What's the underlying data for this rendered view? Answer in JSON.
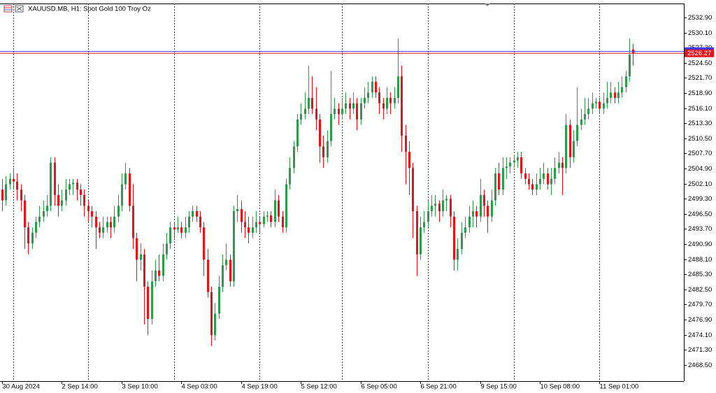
{
  "chart_data": {
    "type": "candlestick",
    "title": "XAUUSD.MB, H1:  Spot Gold 100 Troy Oz",
    "up_color": "#2e9b4a",
    "down_color": "#e0161b",
    "bid": 2526.27,
    "bid_label": "2526.27",
    "bid_color": "#e0161b",
    "ask": 2526.6,
    "ask_color": "#3a3aff",
    "ylim": [
      2465.5,
      2535.5
    ],
    "yticks": [
      {
        "value": 2532.9,
        "label": "2532.90"
      },
      {
        "value": 2530.1,
        "label": "2530.10"
      },
      {
        "value": 2527.3,
        "label": "2527.30"
      },
      {
        "value": 2524.5,
        "label": "2524.50"
      },
      {
        "value": 2521.7,
        "label": "2521.70"
      },
      {
        "value": 2518.9,
        "label": "2518.90"
      },
      {
        "value": 2516.1,
        "label": "2516.10"
      },
      {
        "value": 2513.3,
        "label": "2513.30"
      },
      {
        "value": 2510.5,
        "label": "2510.50"
      },
      {
        "value": 2507.7,
        "label": "2507.70"
      },
      {
        "value": 2504.9,
        "label": "2504.90"
      },
      {
        "value": 2502.1,
        "label": "2502.10"
      },
      {
        "value": 2499.3,
        "label": "2499.30"
      },
      {
        "value": 2496.5,
        "label": "2496.50"
      },
      {
        "value": 2493.7,
        "label": "2493.70"
      },
      {
        "value": 2490.9,
        "label": "2490.90"
      },
      {
        "value": 2488.1,
        "label": "2488.10"
      },
      {
        "value": 2485.3,
        "label": "2485.30"
      },
      {
        "value": 2482.5,
        "label": "2482.50"
      },
      {
        "value": 2479.7,
        "label": "2479.70"
      },
      {
        "value": 2476.9,
        "label": "2476.90"
      },
      {
        "value": 2474.1,
        "label": "2474.10"
      },
      {
        "value": 2471.3,
        "label": "2471.30"
      },
      {
        "value": 2468.5,
        "label": "2468.50"
      }
    ],
    "day_starts": [
      3,
      23,
      46,
      69,
      91,
      114,
      137,
      160
    ],
    "categories": [
      "30 Aug 2024",
      null,
      null,
      null,
      null,
      null,
      null,
      null,
      null,
      null,
      null,
      null,
      null,
      null,
      null,
      null,
      "2 Sep 14:00",
      null,
      null,
      null,
      null,
      null,
      null,
      null,
      null,
      null,
      null,
      null,
      null,
      null,
      null,
      null,
      "3 Sep 10:00",
      null,
      null,
      null,
      null,
      null,
      null,
      null,
      null,
      null,
      null,
      null,
      null,
      null,
      null,
      null,
      "4 Sep 03:00",
      null,
      null,
      null,
      null,
      null,
      null,
      null,
      null,
      null,
      null,
      null,
      null,
      null,
      null,
      null,
      "4 Sep 19:00",
      null,
      null,
      null,
      null,
      null,
      null,
      null,
      null,
      null,
      null,
      null,
      null,
      null,
      null,
      null,
      "5 Sep 12:00",
      null,
      null,
      null,
      null,
      null,
      null,
      null,
      null,
      null,
      null,
      null,
      null,
      null,
      null,
      null,
      "6 Sep 05:00",
      null,
      null,
      null,
      null,
      null,
      null,
      null,
      null,
      null,
      null,
      null,
      null,
      null,
      null,
      null,
      "6 Sep 21:00",
      null,
      null,
      null,
      null,
      null,
      null,
      null,
      null,
      null,
      null,
      null,
      null,
      null,
      null,
      null,
      "9 Sep 15:00",
      null,
      null,
      null,
      null,
      null,
      null,
      null,
      null,
      null,
      null,
      null,
      null,
      null,
      null,
      null,
      "10 Sep 08:00",
      null,
      null,
      null,
      null,
      null,
      null,
      null,
      null,
      null,
      null,
      null,
      null,
      null,
      null,
      null,
      "11 Sep 01:00",
      null,
      null,
      null,
      null,
      null,
      null,
      null,
      null,
      null
    ],
    "ohlc": [
      [
        2501,
        2503,
        2497,
        2499
      ],
      [
        2499,
        2503.5,
        2498,
        2502
      ],
      [
        2502,
        2504,
        2501,
        2503
      ],
      [
        2503,
        2505,
        2501,
        2502.5
      ],
      [
        2502.5,
        2504,
        2499,
        2501
      ],
      [
        2501,
        2502,
        2497,
        2499
      ],
      [
        2499,
        2500,
        2490,
        2494
      ],
      [
        2494,
        2495,
        2489,
        2491
      ],
      [
        2491,
        2494,
        2490,
        2493
      ],
      [
        2493,
        2496,
        2492,
        2495
      ],
      [
        2495,
        2498,
        2494,
        2496
      ],
      [
        2496,
        2499,
        2495,
        2497
      ],
      [
        2497,
        2500,
        2496,
        2498
      ],
      [
        2498,
        2507,
        2497,
        2506
      ],
      [
        2506,
        2507,
        2498,
        2500
      ],
      [
        2500,
        2502,
        2496,
        2498
      ],
      [
        2498,
        2501,
        2497,
        2499
      ],
      [
        2499,
        2503,
        2498,
        2501
      ],
      [
        2501,
        2503,
        2500,
        2502
      ],
      [
        2502,
        2503,
        2500,
        2502.3
      ],
      [
        2502.3,
        2503,
        2499,
        2501
      ],
      [
        2501,
        2502,
        2498,
        2500
      ],
      [
        2500,
        2501,
        2496,
        2498
      ],
      [
        2498,
        2499,
        2495,
        2497
      ],
      [
        2497,
        2498,
        2494,
        2496
      ],
      [
        2496,
        2497,
        2490,
        2494
      ],
      [
        2494,
        2495,
        2492,
        2493
      ],
      [
        2493,
        2496,
        2492,
        2494
      ],
      [
        2494,
        2496,
        2493,
        2495
      ],
      [
        2495,
        2496,
        2492,
        2494
      ],
      [
        2494,
        2498,
        2493,
        2496
      ],
      [
        2496,
        2500,
        2495,
        2498
      ],
      [
        2498,
        2504,
        2497,
        2502
      ],
      [
        2502,
        2506,
        2501,
        2504
      ],
      [
        2504,
        2505,
        2497,
        2498
      ],
      [
        2498,
        2502,
        2490,
        2492
      ],
      [
        2492,
        2493,
        2484,
        2488
      ],
      [
        2488,
        2491,
        2486,
        2489
      ],
      [
        2489,
        2490,
        2476,
        2483
      ],
      [
        2483,
        2484,
        2474,
        2477
      ],
      [
        2477,
        2486,
        2476,
        2484
      ],
      [
        2484,
        2488,
        2483,
        2486
      ],
      [
        2486,
        2489,
        2484,
        2485
      ],
      [
        2485,
        2491,
        2484,
        2489
      ],
      [
        2489,
        2493,
        2488,
        2491
      ],
      [
        2491,
        2495,
        2490,
        2494
      ],
      [
        2494,
        2495,
        2492,
        2493.6
      ],
      [
        2493.6,
        2496,
        2493,
        2494
      ],
      [
        2494,
        2495,
        2492,
        2493
      ],
      [
        2493,
        2496,
        2492,
        2494
      ],
      [
        2494,
        2497,
        2493,
        2496
      ],
      [
        2496,
        2498,
        2495,
        2497
      ],
      [
        2497,
        2498,
        2495,
        2496
      ],
      [
        2496,
        2497,
        2493,
        2494
      ],
      [
        2494,
        2495,
        2485,
        2488
      ],
      [
        2488,
        2490,
        2481,
        2482
      ],
      [
        2482,
        2483,
        2472,
        2474
      ],
      [
        2474,
        2480,
        2473,
        2478
      ],
      [
        2478,
        2485,
        2477,
        2483
      ],
      [
        2483,
        2489,
        2482,
        2487
      ],
      [
        2487,
        2491,
        2486,
        2488
      ],
      [
        2488,
        2489,
        2483,
        2484
      ],
      [
        2484,
        2498,
        2483,
        2497
      ],
      [
        2497,
        2500,
        2495,
        2497.4
      ],
      [
        2497.4,
        2499,
        2493,
        2495
      ],
      [
        2495,
        2497,
        2492,
        2494
      ],
      [
        2494,
        2496,
        2491,
        2493
      ],
      [
        2493,
        2496,
        2492,
        2494
      ],
      [
        2494,
        2497,
        2493,
        2495
      ],
      [
        2495,
        2496,
        2493,
        2494.6
      ],
      [
        2494.6,
        2497,
        2494,
        2496
      ],
      [
        2496,
        2497,
        2495,
        2496.2
      ],
      [
        2496.2,
        2497,
        2494,
        2495
      ],
      [
        2495,
        2501,
        2494,
        2499
      ],
      [
        2499,
        2500,
        2495,
        2496
      ],
      [
        2496,
        2497,
        2493,
        2494
      ],
      [
        2494,
        2503,
        2493,
        2502
      ],
      [
        2502,
        2507,
        2501,
        2505
      ],
      [
        2505,
        2510,
        2504,
        2509
      ],
      [
        2509,
        2515,
        2508,
        2514
      ],
      [
        2514,
        2517,
        2513,
        2515
      ],
      [
        2515,
        2519,
        2514,
        2516
      ],
      [
        2516,
        2524,
        2515,
        2518
      ],
      [
        2518,
        2522,
        2515,
        2516
      ],
      [
        2516,
        2520,
        2512,
        2514
      ],
      [
        2514,
        2515,
        2506,
        2509
      ],
      [
        2509,
        2511,
        2505,
        2507
      ],
      [
        2507,
        2512,
        2506,
        2510
      ],
      [
        2510,
        2523,
        2509,
        2515
      ],
      [
        2515,
        2518,
        2514,
        2516
      ],
      [
        2516,
        2517,
        2513,
        2515
      ],
      [
        2515,
        2518,
        2514,
        2516
      ],
      [
        2516,
        2519,
        2515,
        2517
      ],
      [
        2517,
        2518,
        2514,
        2516
      ],
      [
        2516,
        2519,
        2515,
        2517
      ],
      [
        2517,
        2518,
        2512,
        2514
      ],
      [
        2514,
        2518,
        2513,
        2517
      ],
      [
        2517,
        2520,
        2516,
        2518
      ],
      [
        2518,
        2521,
        2517,
        2519
      ],
      [
        2519,
        2522,
        2518,
        2521
      ],
      [
        2521,
        2522,
        2518,
        2519
      ],
      [
        2519,
        2520,
        2515,
        2517
      ],
      [
        2517,
        2518,
        2514,
        2516
      ],
      [
        2516,
        2520,
        2515,
        2518
      ],
      [
        2518,
        2519,
        2515,
        2517
      ],
      [
        2517,
        2520,
        2516,
        2518
      ],
      [
        2518,
        2529,
        2517,
        2522
      ],
      [
        2522,
        2524,
        2508,
        2511
      ],
      [
        2511,
        2513,
        2502,
        2508
      ],
      [
        2508,
        2510,
        2500,
        2505
      ],
      [
        2505,
        2506,
        2492,
        2497
      ],
      [
        2497,
        2498,
        2485,
        2489
      ],
      [
        2489,
        2496,
        2488,
        2494
      ],
      [
        2494,
        2497,
        2493,
        2495
      ],
      [
        2495,
        2499,
        2494,
        2497
      ],
      [
        2497,
        2500,
        2496,
        2498
      ],
      [
        2498,
        2500,
        2496,
        2498.4
      ],
      [
        2498.4,
        2499,
        2495,
        2497
      ],
      [
        2497,
        2501,
        2496,
        2499
      ],
      [
        2499,
        2500,
        2497,
        2499.3
      ],
      [
        2499.3,
        2500,
        2494,
        2496
      ],
      [
        2496,
        2497,
        2486,
        2488
      ],
      [
        2488,
        2492,
        2486,
        2490
      ],
      [
        2490,
        2495,
        2489,
        2493
      ],
      [
        2493,
        2496,
        2492,
        2494
      ],
      [
        2494,
        2498,
        2493,
        2496
      ],
      [
        2496,
        2499,
        2494,
        2497
      ],
      [
        2497,
        2498,
        2494,
        2496
      ],
      [
        2496,
        2503,
        2495,
        2500
      ],
      [
        2500,
        2501,
        2496,
        2498
      ],
      [
        2498,
        2499,
        2493,
        2496
      ],
      [
        2496,
        2501,
        2495,
        2499
      ],
      [
        2499,
        2505,
        2498,
        2504
      ],
      [
        2504,
        2506,
        2500,
        2501
      ],
      [
        2501,
        2507,
        2500,
        2505
      ],
      [
        2505,
        2507,
        2503,
        2505.3
      ],
      [
        2505.3,
        2507,
        2504,
        2506
      ],
      [
        2506,
        2507.5,
        2505,
        2506.4
      ],
      [
        2506.4,
        2508,
        2505,
        2507
      ],
      [
        2507,
        2508,
        2503,
        2504
      ],
      [
        2504,
        2505,
        2502,
        2503
      ],
      [
        2503,
        2504,
        2501,
        2502
      ],
      [
        2502,
        2503,
        2500,
        2501
      ],
      [
        2501,
        2504,
        2500,
        2502
      ],
      [
        2502,
        2505,
        2501,
        2503
      ],
      [
        2503,
        2506,
        2502,
        2504
      ],
      [
        2504,
        2505,
        2501,
        2502
      ],
      [
        2502,
        2505,
        2500,
        2503
      ],
      [
        2503,
        2507,
        2502,
        2505
      ],
      [
        2505,
        2508,
        2504,
        2506
      ],
      [
        2506,
        2507,
        2500,
        2505
      ],
      [
        2505,
        2515,
        2504,
        2513
      ],
      [
        2513,
        2514,
        2505,
        2507
      ],
      [
        2507,
        2512,
        2506,
        2510
      ],
      [
        2510,
        2520,
        2509,
        2513
      ],
      [
        2513,
        2516,
        2512,
        2514
      ],
      [
        2514,
        2518,
        2513,
        2515
      ],
      [
        2515,
        2518,
        2514,
        2516
      ],
      [
        2516,
        2519,
        2515,
        2517
      ],
      [
        2517,
        2518,
        2516,
        2517.3
      ],
      [
        2517.3,
        2518,
        2515,
        2516
      ],
      [
        2516,
        2519,
        2515,
        2517
      ],
      [
        2517,
        2521,
        2516,
        2518
      ],
      [
        2518,
        2521,
        2517,
        2519
      ],
      [
        2519,
        2520,
        2517,
        2518
      ],
      [
        2518,
        2521,
        2517,
        2519
      ],
      [
        2519,
        2522,
        2518,
        2520
      ],
      [
        2520,
        2523,
        2519,
        2522
      ],
      [
        2522,
        2529,
        2521,
        2526
      ],
      [
        2527,
        2528,
        2524,
        2526.27
      ]
    ]
  }
}
